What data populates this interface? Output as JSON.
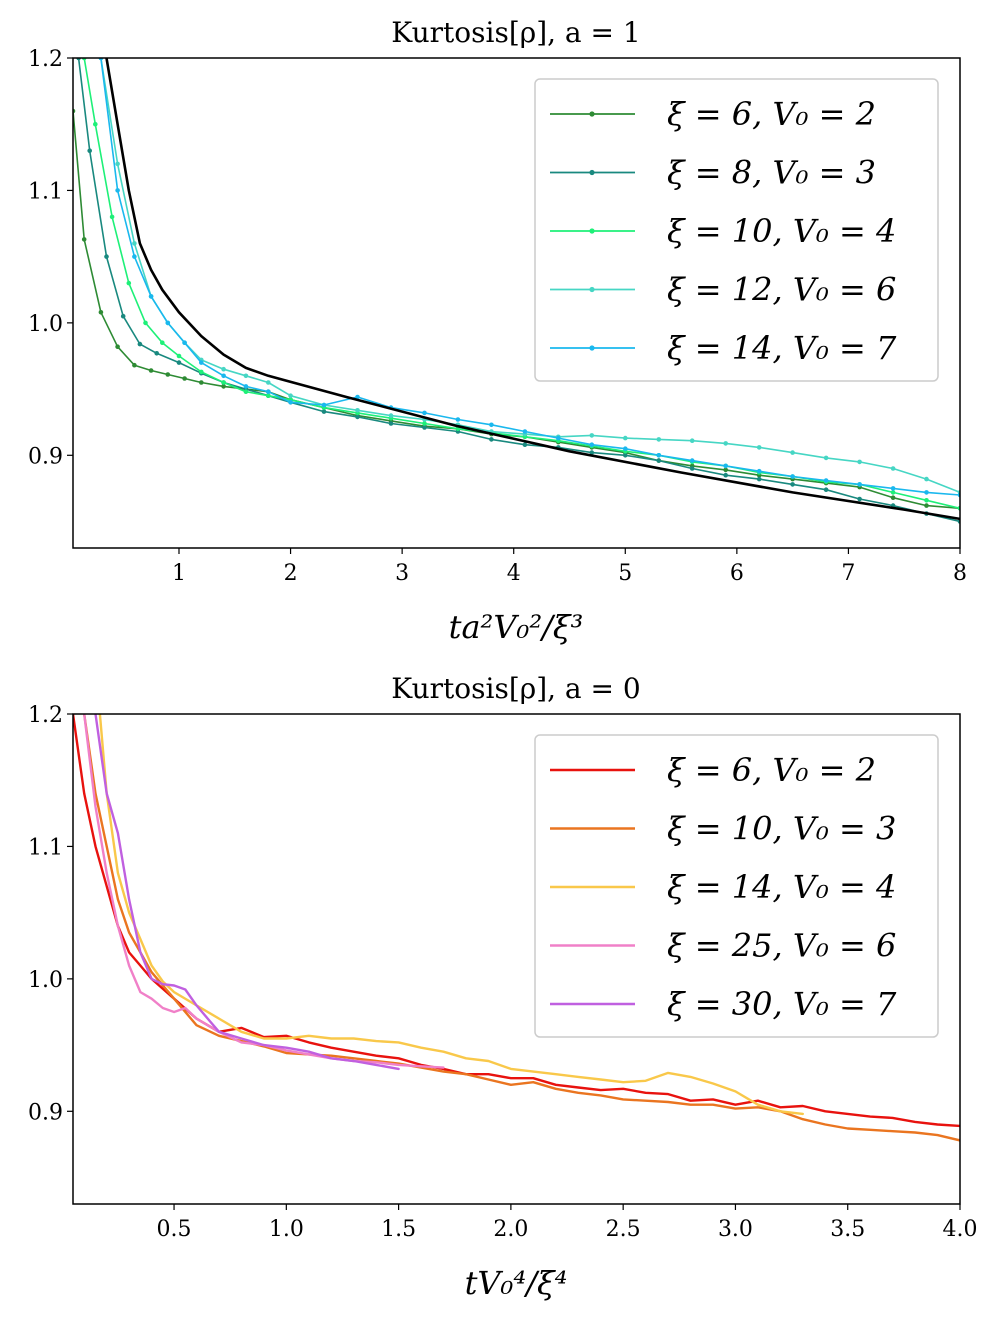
{
  "chart_data": [
    {
      "id": "top",
      "type": "line",
      "title": "Kurtosis[ρ],    a = 1",
      "xlabel": "ta²V₀²/ξ³",
      "ylabel": "",
      "xlim": [
        0.05,
        8.0
      ],
      "ylim": [
        0.83,
        1.2
      ],
      "xticks": [
        1,
        2,
        3,
        4,
        5,
        6,
        7,
        8
      ],
      "xtick_labels": [
        "1",
        "2",
        "3",
        "4",
        "5",
        "6",
        "7",
        "8"
      ],
      "yticks": [
        0.9,
        1.0,
        1.1,
        1.2
      ],
      "ytick_labels": [
        "0.9",
        "1.0",
        "1.1",
        "1.2"
      ],
      "legend_position": "top-right",
      "series": [
        {
          "name": "ξ = 6,  V₀ = 2",
          "color": "#2e8b34",
          "markers": true,
          "x": [
            0.05,
            0.15,
            0.3,
            0.45,
            0.6,
            0.75,
            0.9,
            1.05,
            1.2,
            1.4,
            1.6,
            1.8,
            2.0,
            2.3,
            2.6,
            2.9,
            3.2,
            3.5,
            3.8,
            4.1,
            4.4,
            4.7,
            5.0,
            5.3,
            5.6,
            5.9,
            6.2,
            6.5,
            6.8,
            7.1,
            7.4,
            7.7,
            8.0
          ],
          "y": [
            1.16,
            1.063,
            1.008,
            0.982,
            0.968,
            0.964,
            0.961,
            0.958,
            0.955,
            0.952,
            0.95,
            0.948,
            0.942,
            0.936,
            0.93,
            0.926,
            0.922,
            0.92,
            0.916,
            0.914,
            0.91,
            0.906,
            0.902,
            0.896,
            0.892,
            0.889,
            0.885,
            0.882,
            0.879,
            0.876,
            0.868,
            0.862,
            0.86
          ]
        },
        {
          "name": "ξ = 8,  V₀ = 3",
          "color": "#19897f",
          "markers": true,
          "x": [
            0.1,
            0.2,
            0.35,
            0.5,
            0.65,
            0.8,
            1.0,
            1.2,
            1.4,
            1.6,
            1.8,
            2.0,
            2.3,
            2.6,
            2.9,
            3.2,
            3.5,
            3.8,
            4.1,
            4.4,
            4.7,
            5.0,
            5.3,
            5.6,
            5.9,
            6.2,
            6.5,
            6.8,
            7.1,
            7.4,
            7.7,
            8.0
          ],
          "y": [
            1.2,
            1.13,
            1.05,
            1.005,
            0.984,
            0.977,
            0.97,
            0.962,
            0.955,
            0.95,
            0.945,
            0.94,
            0.933,
            0.929,
            0.924,
            0.921,
            0.918,
            0.912,
            0.908,
            0.906,
            0.902,
            0.9,
            0.896,
            0.89,
            0.885,
            0.882,
            0.878,
            0.874,
            0.867,
            0.862,
            0.856,
            0.85
          ]
        },
        {
          "name": "ξ = 10,  V₀ = 4",
          "color": "#1ef078",
          "markers": true,
          "x": [
            0.15,
            0.25,
            0.4,
            0.55,
            0.7,
            0.85,
            1.0,
            1.2,
            1.4,
            1.6,
            1.8,
            2.0,
            2.3,
            2.6,
            2.9,
            3.2,
            3.5,
            3.8,
            4.1,
            4.4,
            4.7,
            5.0,
            5.3,
            5.6,
            5.9,
            6.2,
            6.5,
            6.8,
            7.1,
            7.4,
            7.7,
            8.0
          ],
          "y": [
            1.2,
            1.15,
            1.08,
            1.03,
            1.0,
            0.985,
            0.975,
            0.963,
            0.955,
            0.948,
            0.945,
            0.942,
            0.936,
            0.932,
            0.928,
            0.924,
            0.92,
            0.917,
            0.914,
            0.911,
            0.907,
            0.903,
            0.9,
            0.895,
            0.892,
            0.887,
            0.884,
            0.88,
            0.878,
            0.872,
            0.866,
            0.86
          ]
        },
        {
          "name": "ξ = 12,  V₀ = 6",
          "color": "#46d6c4",
          "markers": true,
          "x": [
            0.3,
            0.45,
            0.6,
            0.75,
            0.9,
            1.05,
            1.2,
            1.4,
            1.6,
            1.8,
            2.0,
            2.3,
            2.6,
            2.9,
            3.2,
            3.5,
            3.8,
            4.1,
            4.4,
            4.7,
            5.0,
            5.3,
            5.6,
            5.9,
            6.2,
            6.5,
            6.8,
            7.1,
            7.4,
            7.7,
            8.0
          ],
          "y": [
            1.2,
            1.12,
            1.06,
            1.02,
            1.0,
            0.985,
            0.972,
            0.965,
            0.96,
            0.955,
            0.945,
            0.938,
            0.934,
            0.93,
            0.927,
            0.923,
            0.918,
            0.916,
            0.914,
            0.915,
            0.913,
            0.912,
            0.911,
            0.909,
            0.906,
            0.902,
            0.898,
            0.895,
            0.89,
            0.882,
            0.872
          ]
        },
        {
          "name": "ξ = 14,  V₀ = 7",
          "color": "#1ab8ee",
          "markers": true,
          "x": [
            0.3,
            0.45,
            0.6,
            0.75,
            0.9,
            1.05,
            1.2,
            1.4,
            1.6,
            1.8,
            2.0,
            2.3,
            2.6,
            2.9,
            3.2,
            3.5,
            3.8,
            4.1,
            4.4,
            4.7,
            5.0,
            5.3,
            5.6,
            5.9,
            6.2,
            6.5,
            6.8,
            7.1,
            7.4,
            7.7,
            8.0
          ],
          "y": [
            1.2,
            1.1,
            1.05,
            1.02,
            1.0,
            0.985,
            0.97,
            0.96,
            0.952,
            0.948,
            0.94,
            0.938,
            0.944,
            0.936,
            0.932,
            0.927,
            0.923,
            0.918,
            0.913,
            0.908,
            0.905,
            0.9,
            0.896,
            0.892,
            0.888,
            0.884,
            0.881,
            0.878,
            0.875,
            0.872,
            0.87
          ]
        },
        {
          "name": "",
          "color": "#000000",
          "markers": false,
          "x": [
            0.35,
            0.45,
            0.55,
            0.65,
            0.75,
            0.85,
            1.0,
            1.2,
            1.4,
            1.6,
            1.8,
            2.5,
            3.5,
            4.5,
            5.5,
            6.5,
            7.5,
            8.0
          ],
          "y": [
            1.2,
            1.15,
            1.1,
            1.06,
            1.04,
            1.025,
            1.008,
            0.99,
            0.976,
            0.966,
            0.96,
            0.944,
            0.922,
            0.903,
            0.887,
            0.872,
            0.859,
            0.852
          ]
        }
      ]
    },
    {
      "id": "bottom",
      "type": "line",
      "title": "Kurtosis[ρ],    a = 0",
      "xlabel": "tV₀⁴/ξ⁴",
      "ylabel": "",
      "xlim": [
        0.05,
        4.0
      ],
      "ylim": [
        0.83,
        1.2
      ],
      "xticks": [
        0.5,
        1.0,
        1.5,
        2.0,
        2.5,
        3.0,
        3.5,
        4.0
      ],
      "xtick_labels": [
        "0.5",
        "1.0",
        "1.5",
        "2.0",
        "2.5",
        "3.0",
        "3.5",
        "4.0"
      ],
      "yticks": [
        0.9,
        1.0,
        1.1,
        1.2
      ],
      "ytick_labels": [
        "0.9",
        "1.0",
        "1.1",
        "1.2"
      ],
      "legend_position": "top-right",
      "series": [
        {
          "name": "ξ = 6,  V₀ = 2",
          "color": "#e8120e",
          "markers": false,
          "x": [
            0.05,
            0.1,
            0.15,
            0.2,
            0.25,
            0.3,
            0.35,
            0.4,
            0.5,
            0.6,
            0.7,
            0.8,
            0.9,
            1.0,
            1.1,
            1.2,
            1.3,
            1.4,
            1.5,
            1.6,
            1.7,
            1.8,
            1.9,
            2.0,
            2.1,
            2.2,
            2.3,
            2.4,
            2.5,
            2.6,
            2.7,
            2.8,
            2.9,
            3.0,
            3.1,
            3.2,
            3.3,
            3.4,
            3.5,
            3.6,
            3.7,
            3.8,
            3.9,
            4.0
          ],
          "y": [
            1.2,
            1.14,
            1.1,
            1.07,
            1.04,
            1.02,
            1.01,
            1.0,
            0.985,
            0.97,
            0.96,
            0.963,
            0.956,
            0.957,
            0.952,
            0.948,
            0.945,
            0.942,
            0.94,
            0.935,
            0.932,
            0.928,
            0.928,
            0.925,
            0.925,
            0.92,
            0.918,
            0.916,
            0.917,
            0.914,
            0.913,
            0.908,
            0.909,
            0.905,
            0.908,
            0.903,
            0.904,
            0.9,
            0.898,
            0.896,
            0.895,
            0.892,
            0.89,
            0.889
          ]
        },
        {
          "name": "ξ = 10,  V₀ = 3",
          "color": "#ea7520",
          "markers": false,
          "x": [
            0.1,
            0.15,
            0.2,
            0.25,
            0.3,
            0.35,
            0.4,
            0.5,
            0.6,
            0.7,
            0.8,
            0.9,
            1.0,
            1.1,
            1.2,
            1.3,
            1.4,
            1.5,
            1.6,
            1.7,
            1.8,
            1.9,
            2.0,
            2.1,
            2.2,
            2.3,
            2.4,
            2.5,
            2.6,
            2.7,
            2.8,
            2.9,
            3.0,
            3.1,
            3.2,
            3.3,
            3.4,
            3.5,
            3.6,
            3.7,
            3.8,
            3.9,
            4.0
          ],
          "y": [
            1.2,
            1.14,
            1.1,
            1.06,
            1.035,
            1.02,
            1.005,
            0.985,
            0.965,
            0.957,
            0.953,
            0.949,
            0.944,
            0.943,
            0.942,
            0.94,
            0.938,
            0.936,
            0.933,
            0.93,
            0.928,
            0.924,
            0.92,
            0.922,
            0.917,
            0.914,
            0.912,
            0.909,
            0.908,
            0.907,
            0.905,
            0.905,
            0.902,
            0.903,
            0.9,
            0.894,
            0.89,
            0.887,
            0.886,
            0.885,
            0.884,
            0.882,
            0.878
          ]
        },
        {
          "name": "ξ = 14,  V₀ = 4",
          "color": "#f9c84a",
          "markers": false,
          "x": [
            0.17,
            0.2,
            0.25,
            0.3,
            0.35,
            0.4,
            0.45,
            0.5,
            0.6,
            0.7,
            0.8,
            0.9,
            1.0,
            1.1,
            1.2,
            1.3,
            1.4,
            1.5,
            1.6,
            1.7,
            1.8,
            1.9,
            2.0,
            2.1,
            2.2,
            2.3,
            2.4,
            2.5,
            2.6,
            2.7,
            2.8,
            2.9,
            3.0,
            3.1,
            3.2,
            3.3
          ],
          "y": [
            1.2,
            1.14,
            1.08,
            1.05,
            1.03,
            1.01,
            0.998,
            0.99,
            0.98,
            0.97,
            0.96,
            0.955,
            0.955,
            0.957,
            0.955,
            0.955,
            0.953,
            0.952,
            0.948,
            0.945,
            0.94,
            0.938,
            0.932,
            0.93,
            0.928,
            0.926,
            0.924,
            0.922,
            0.923,
            0.929,
            0.926,
            0.921,
            0.915,
            0.905,
            0.9,
            0.898
          ]
        },
        {
          "name": "ξ = 25,  V₀ = 6",
          "color": "#f080c8",
          "markers": false,
          "x": [
            0.1,
            0.15,
            0.2,
            0.25,
            0.3,
            0.35,
            0.4,
            0.45,
            0.5,
            0.55,
            0.6,
            0.7,
            0.8,
            0.9,
            1.0,
            1.1,
            1.2,
            1.3,
            1.4,
            1.5,
            1.6,
            1.7
          ],
          "y": [
            1.2,
            1.13,
            1.08,
            1.04,
            1.01,
            0.99,
            0.985,
            0.978,
            0.975,
            0.978,
            0.97,
            0.96,
            0.952,
            0.95,
            0.946,
            0.943,
            0.94,
            0.938,
            0.937,
            0.935,
            0.934,
            0.933
          ]
        },
        {
          "name": "ξ = 30,  V₀ = 7",
          "color": "#c060e0",
          "markers": false,
          "x": [
            0.15,
            0.2,
            0.25,
            0.3,
            0.35,
            0.4,
            0.45,
            0.5,
            0.55,
            0.6,
            0.65,
            0.7,
            0.8,
            0.9,
            1.0,
            1.1,
            1.2,
            1.3,
            1.4,
            1.5
          ],
          "y": [
            1.2,
            1.14,
            1.11,
            1.06,
            1.02,
            1.0,
            0.996,
            0.995,
            0.992,
            0.98,
            0.97,
            0.96,
            0.955,
            0.95,
            0.948,
            0.945,
            0.94,
            0.938,
            0.935,
            0.932
          ]
        }
      ]
    }
  ]
}
